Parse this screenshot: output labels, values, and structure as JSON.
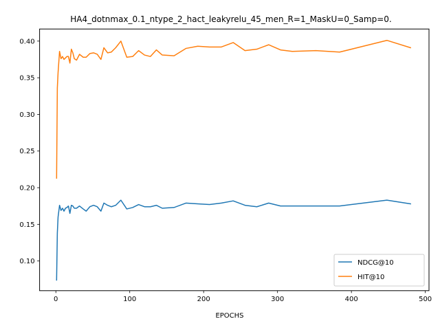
{
  "chart_data": {
    "type": "line",
    "title": "HA4_dotnmax_0.1_ntype_2_hact_leakyrelu_45_men_R=1_MaskU=0_Samp=0.",
    "xlabel": "EPOCHS",
    "ylabel": "",
    "xlim": [
      -22,
      505
    ],
    "ylim": [
      0.0595,
      0.4165
    ],
    "xticks": [
      0,
      100,
      200,
      300,
      400,
      500
    ],
    "yticks": [
      0.1,
      0.15,
      0.2,
      0.25,
      0.3,
      0.35,
      0.4
    ],
    "ytick_labels": [
      "0.10",
      "0.15",
      "0.20",
      "0.25",
      "0.30",
      "0.35",
      "0.40"
    ],
    "grid": false,
    "legend_position": "bottom-right",
    "series": [
      {
        "name": "NDCG@10",
        "color": "#1f77b4",
        "x": [
          1,
          2,
          3,
          5,
          7,
          9,
          11,
          13,
          15,
          17,
          19,
          21,
          23,
          25,
          28,
          32,
          37,
          41,
          46,
          51,
          56,
          61,
          65,
          70,
          75,
          81,
          88,
          96,
          104,
          112,
          120,
          128,
          136,
          144,
          160,
          176,
          192,
          208,
          224,
          240,
          256,
          272,
          288,
          304,
          320,
          352,
          384,
          416,
          448,
          480
        ],
        "y": [
          0.074,
          0.138,
          0.16,
          0.176,
          0.169,
          0.172,
          0.168,
          0.172,
          0.173,
          0.175,
          0.165,
          0.176,
          0.175,
          0.172,
          0.172,
          0.175,
          0.171,
          0.168,
          0.174,
          0.176,
          0.174,
          0.168,
          0.179,
          0.176,
          0.174,
          0.176,
          0.183,
          0.171,
          0.173,
          0.177,
          0.174,
          0.174,
          0.176,
          0.172,
          0.173,
          0.179,
          0.178,
          0.177,
          0.179,
          0.182,
          0.176,
          0.174,
          0.179,
          0.175,
          0.175,
          0.175,
          0.175,
          0.179,
          0.183,
          0.178
        ]
      },
      {
        "name": "HIT@10",
        "color": "#ff7f0e",
        "x": [
          1,
          2,
          3,
          5,
          7,
          9,
          11,
          13,
          15,
          17,
          19,
          21,
          23,
          25,
          28,
          32,
          37,
          41,
          46,
          51,
          56,
          61,
          65,
          70,
          75,
          81,
          88,
          96,
          104,
          112,
          120,
          128,
          136,
          144,
          160,
          176,
          192,
          208,
          224,
          240,
          256,
          272,
          288,
          304,
          320,
          352,
          384,
          416,
          448,
          480
        ],
        "y": [
          0.213,
          0.336,
          0.357,
          0.386,
          0.376,
          0.379,
          0.375,
          0.377,
          0.379,
          0.379,
          0.37,
          0.389,
          0.384,
          0.376,
          0.374,
          0.382,
          0.378,
          0.378,
          0.383,
          0.384,
          0.382,
          0.375,
          0.391,
          0.384,
          0.385,
          0.391,
          0.4,
          0.378,
          0.379,
          0.387,
          0.381,
          0.379,
          0.388,
          0.381,
          0.38,
          0.39,
          0.393,
          0.392,
          0.392,
          0.398,
          0.387,
          0.389,
          0.395,
          0.388,
          0.386,
          0.387,
          0.385,
          0.393,
          0.401,
          0.391
        ]
      }
    ]
  }
}
